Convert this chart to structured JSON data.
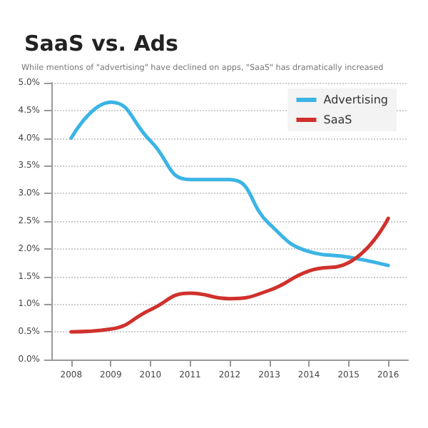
{
  "chart_data": {
    "type": "line",
    "title": "SaaS vs. Ads",
    "subtitle": "While mentions of \"advertising\" have declined on apps, \"SaaS\" has dramatically increased",
    "categories": [
      "2008",
      "2009",
      "2010",
      "2011",
      "2012",
      "2013",
      "2014",
      "2015",
      "2016"
    ],
    "series": [
      {
        "name": "Advertising",
        "color": "#3cb4e5",
        "values": [
          4.0,
          4.65,
          3.95,
          3.25,
          3.25,
          2.45,
          1.95,
          1.85,
          1.7
        ]
      },
      {
        "name": "SaaS",
        "color": "#d0312d",
        "values": [
          0.5,
          0.55,
          0.9,
          1.2,
          1.1,
          1.25,
          1.6,
          1.75,
          2.55
        ]
      }
    ],
    "ylim": [
      0,
      5
    ],
    "yticks": [
      {
        "value": 0,
        "label": "0.0%"
      },
      {
        "value": 0.5,
        "label": "0.5%"
      },
      {
        "value": 1,
        "label": "1.0%"
      },
      {
        "value": 1.5,
        "label": "1.5%"
      },
      {
        "value": 2,
        "label": "2.0%"
      },
      {
        "value": 2.5,
        "label": "2.5%"
      },
      {
        "value": 3,
        "label": "3.0%"
      },
      {
        "value": 3.5,
        "label": "3.5%"
      },
      {
        "value": 4,
        "label": "4.0%"
      },
      {
        "value": 4.5,
        "label": "4.5%"
      },
      {
        "value": 5,
        "label": "5.0%"
      }
    ],
    "grid": "y",
    "legend": "top right",
    "marker": "none",
    "line_style": "solid"
  }
}
